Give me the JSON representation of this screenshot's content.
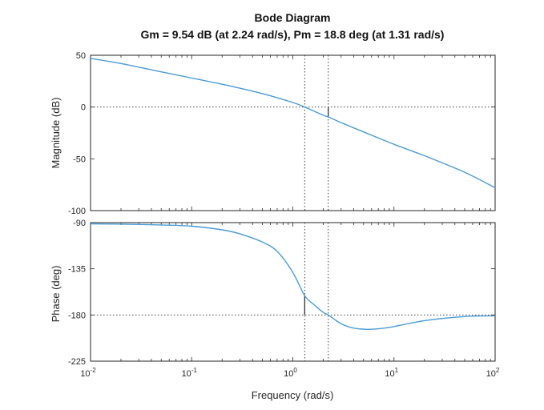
{
  "chart_data": {
    "type": "line",
    "title": "Bode Diagram",
    "subtitle": "Gm = 9.54 dB (at 2.24 rad/s),  Pm = 18.8 deg (at 1.31 rad/s)",
    "xlabel": "Frequency  (rad/s)",
    "xscale": "log",
    "xlim": [
      0.01,
      100
    ],
    "xticks": [
      {
        "value": 0.01,
        "base": "10",
        "exp": "-2"
      },
      {
        "value": 0.1,
        "base": "10",
        "exp": "-1"
      },
      {
        "value": 1,
        "base": "10",
        "exp": "0"
      },
      {
        "value": 10,
        "base": "10",
        "exp": "1"
      },
      {
        "value": 100,
        "base": "10",
        "exp": "2"
      }
    ],
    "grid": false,
    "line_color": "#4a9bd6",
    "gain_crossover": 1.31,
    "phase_crossover": 2.24,
    "panels": [
      {
        "id": "magnitude",
        "ylabel": "Magnitude (dB)",
        "ylim": [
          -100,
          50
        ],
        "yticks": [
          "50",
          "0",
          "-50",
          "-100"
        ],
        "ytick_values": [
          50,
          0,
          -50,
          -100
        ],
        "reference_line": 0,
        "margin_marker": {
          "x": 2.24,
          "y_from": -9.54,
          "y_to": 0
        },
        "x": [
          0.01,
          0.02,
          0.05,
          0.1,
          0.2,
          0.5,
          1,
          1.31,
          2,
          2.24,
          3,
          5,
          10,
          20,
          50,
          100
        ],
        "y": [
          47,
          42,
          34,
          28,
          22,
          13,
          4.4,
          0,
          -7.9,
          -9.54,
          -15,
          -24,
          -36,
          -47,
          -63,
          -78
        ]
      },
      {
        "id": "phase",
        "ylabel": "Phase (deg)",
        "ylim": [
          -225,
          -90
        ],
        "yticks": [
          "-90",
          "-135",
          "-180",
          "-225"
        ],
        "ytick_values": [
          -90,
          -135,
          -180,
          -225
        ],
        "reference_line": -180,
        "margin_marker": {
          "x": 1.31,
          "y_from": -180,
          "y_to": -161.2
        },
        "x": [
          0.01,
          0.02,
          0.05,
          0.1,
          0.2,
          0.3,
          0.5,
          0.7,
          1,
          1.31,
          1.6,
          2,
          2.24,
          3,
          4,
          5.5,
          7,
          10,
          20,
          50,
          100
        ],
        "y": [
          -91.2,
          -91.5,
          -92.3,
          -93.5,
          -97,
          -101,
          -109,
          -118,
          -138.5,
          -161.2,
          -169.5,
          -177.5,
          -180,
          -188.5,
          -192.8,
          -194,
          -193.5,
          -191.3,
          -185.5,
          -181.5,
          -180.8
        ]
      }
    ]
  }
}
